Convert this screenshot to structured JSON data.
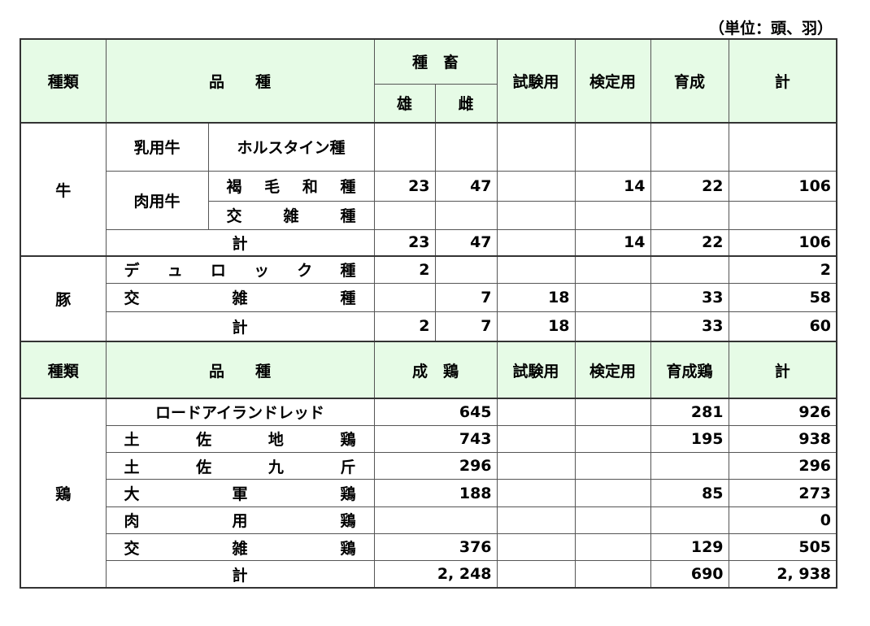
{
  "unit_note": "（単位：頭、羽）",
  "livestock_header": {
    "type": "種類",
    "breed": "品　　種",
    "breeding": "種　畜",
    "male": "雄",
    "female": "雌",
    "test": "試験用",
    "inspection": "検定用",
    "rearing": "育成",
    "total": "計"
  },
  "cattle": {
    "type": "牛",
    "dairy": "乳用牛",
    "holstein": "ホルスタイン種",
    "beef": "肉用牛",
    "rows": [
      {
        "breed": "褐 毛 和 種",
        "male": "23",
        "female": "47",
        "test": "",
        "inspection": "14",
        "rearing": "22",
        "total": "106"
      },
      {
        "breed": "交 雑 種",
        "male": "",
        "female": "",
        "test": "",
        "inspection": "",
        "rearing": "",
        "total": ""
      }
    ],
    "subtotal": {
      "label": "計",
      "male": "23",
      "female": "47",
      "test": "",
      "inspection": "14",
      "rearing": "22",
      "total": "106"
    }
  },
  "pig": {
    "type": "豚",
    "rows": [
      {
        "breed": "デ ュ ロ ッ ク 種",
        "male": "2",
        "female": "",
        "test": "",
        "inspection": "",
        "rearing": "",
        "total": "2"
      },
      {
        "breed": "交 雑 種",
        "male": "",
        "female": "7",
        "test": "18",
        "inspection": "",
        "rearing": "33",
        "total": "58"
      }
    ],
    "subtotal": {
      "label": "計",
      "male": "2",
      "female": "7",
      "test": "18",
      "inspection": "",
      "rearing": "33",
      "total": "60"
    }
  },
  "chicken_header": {
    "type": "種類",
    "breed": "品　　種",
    "adult": "成　鶏",
    "test": "試験用",
    "inspection": "検定用",
    "rearing": "育成鶏",
    "total": "計"
  },
  "chicken": {
    "type": "鶏",
    "rows": [
      {
        "breed": "ロードアイランドレッド",
        "adult": "645",
        "test": "",
        "inspection": "",
        "rearing": "281",
        "total": "926"
      },
      {
        "breed": "土 佐 地 鶏",
        "adult": "743",
        "test": "",
        "inspection": "",
        "rearing": "195",
        "total": "938"
      },
      {
        "breed": "土 佐 九 斤",
        "adult": "296",
        "test": "",
        "inspection": "",
        "rearing": "",
        "total": "296"
      },
      {
        "breed": "大 軍 鶏",
        "adult": "188",
        "test": "",
        "inspection": "",
        "rearing": "85",
        "total": "273"
      },
      {
        "breed": "肉 用 鶏",
        "adult": "",
        "test": "",
        "inspection": "",
        "rearing": "",
        "total": "0"
      },
      {
        "breed": "交 雑 鶏",
        "adult": "376",
        "test": "",
        "inspection": "",
        "rearing": "129",
        "total": "505"
      }
    ],
    "subtotal": {
      "label": "計",
      "adult": "2, 248",
      "test": "",
      "inspection": "",
      "rearing": "690",
      "total": "2, 938"
    }
  }
}
